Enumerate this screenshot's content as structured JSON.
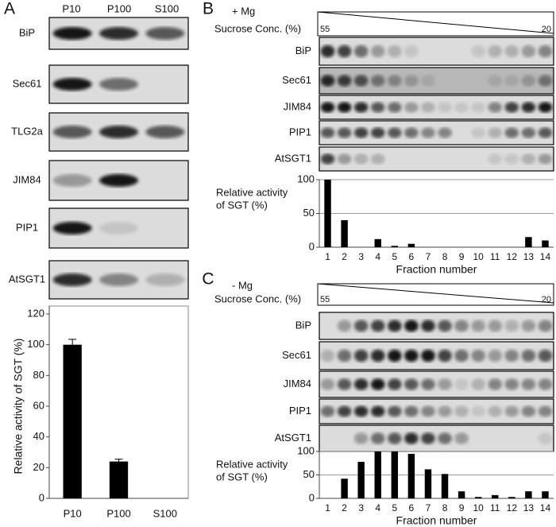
{
  "panels": [
    {
      "label": "A",
      "columns": [
        "P10",
        "P100",
        "S100"
      ],
      "blots": [
        "BiP",
        "Sec61",
        "TLG2a",
        "JIM84",
        "PIP1",
        "AtSGT1"
      ]
    },
    {
      "label": "B",
      "condition": "+ Mg",
      "gradient_label": "Sucrose Conc. (%)",
      "gradient_ends": [
        55,
        20
      ],
      "blots": [
        "BiP",
        "Sec61",
        "JIM84",
        "PIP1",
        "AtSGT1"
      ]
    },
    {
      "label": "C",
      "condition": "- Mg",
      "gradient_label": "Sucrose Conc. (%)",
      "gradient_ends": [
        55,
        20
      ],
      "blots": [
        "BiP",
        "Sec61",
        "JIM84",
        "PIP1",
        "AtSGT1"
      ]
    }
  ],
  "chart_data": [
    {
      "type": "bar",
      "y_label": "Relative activity of SGT (%)",
      "categories": [
        "P10",
        "P100",
        "S100"
      ],
      "values": [
        100,
        24,
        0
      ],
      "errors": [
        3.5,
        1.5,
        null
      ],
      "color": "#000000",
      "ylim": [
        0,
        120
      ],
      "yticks": [
        0,
        20,
        40,
        60,
        80,
        100,
        120
      ],
      "grid": false
    },
    {
      "type": "bar",
      "y_label_lines": [
        "Relative activity",
        "of SGT (%)"
      ],
      "x_label": "Fraction number",
      "categories": [
        "1",
        "2",
        "3",
        "4",
        "5",
        "6",
        "7",
        "8",
        "9",
        "10",
        "11",
        "12",
        "13",
        "14"
      ],
      "values": [
        100,
        40,
        0,
        12,
        2,
        5,
        0,
        0,
        0,
        0,
        0,
        0,
        15,
        10
      ],
      "color": "#000000",
      "ylim": [
        0,
        100
      ],
      "yticks": [
        0,
        50,
        100
      ],
      "grid": true
    },
    {
      "type": "bar",
      "y_label_lines": [
        "Relative activity",
        "of SGT (%)"
      ],
      "x_label": "Fraction number",
      "categories": [
        "1",
        "2",
        "3",
        "4",
        "5",
        "6",
        "7",
        "8",
        "9",
        "10",
        "11",
        "12",
        "13",
        "14"
      ],
      "values": [
        0,
        42,
        78,
        100,
        100,
        95,
        62,
        52,
        15,
        3,
        7,
        3,
        15,
        15
      ],
      "color": "#000000",
      "ylim": [
        0,
        100
      ],
      "yticks": [
        0,
        50,
        100
      ],
      "grid": true
    }
  ]
}
